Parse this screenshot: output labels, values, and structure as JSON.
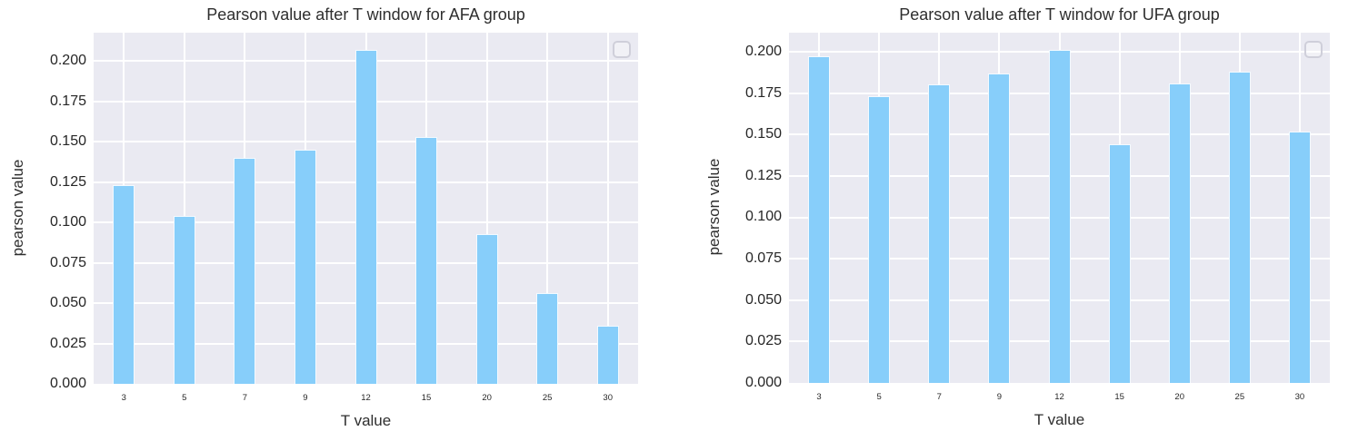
{
  "colors": {
    "bar": "#87cefa",
    "plot_background": "#eaeaf2",
    "gridline": "#ffffff",
    "text": "#2e2e2e",
    "legend_border": "#cfcfda"
  },
  "chart_data": [
    {
      "type": "bar",
      "title": "Pearson value after T window for AFA group",
      "xlabel": "T value",
      "ylabel": "pearson value",
      "categories": [
        "3",
        "5",
        "7",
        "9",
        "12",
        "15",
        "20",
        "25",
        "30"
      ],
      "values": [
        0.123,
        0.104,
        0.14,
        0.145,
        0.207,
        0.153,
        0.093,
        0.056,
        0.036
      ],
      "ylim": [
        0,
        0.2175
      ],
      "ytick_labels": [
        "0.000",
        "0.025",
        "0.050",
        "0.075",
        "0.100",
        "0.125",
        "0.150",
        "0.175",
        "0.200"
      ],
      "grid": "on",
      "legend": "empty-box-top-right"
    },
    {
      "type": "bar",
      "title": "Pearson value after T window for UFA group",
      "xlabel": "T value",
      "ylabel": "pearson value",
      "categories": [
        "3",
        "5",
        "7",
        "9",
        "12",
        "15",
        "20",
        "25",
        "30"
      ],
      "values": [
        0.197,
        0.173,
        0.18,
        0.187,
        0.201,
        0.144,
        0.181,
        0.188,
        0.152
      ],
      "ylim": [
        0,
        0.2115
      ],
      "ytick_labels": [
        "0.000",
        "0.025",
        "0.050",
        "0.075",
        "0.100",
        "0.125",
        "0.150",
        "0.175",
        "0.200"
      ],
      "grid": "on",
      "legend": "empty-box-top-right"
    }
  ]
}
